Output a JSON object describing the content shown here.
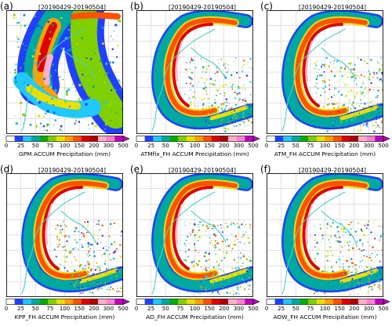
{
  "date_range": "[20190429-20190504]",
  "colorbar": {
    "ticks": [
      "0",
      "25",
      "50",
      "75",
      "100",
      "150",
      "200",
      "300",
      "500"
    ],
    "colors": [
      "#ffffff",
      "#2040ff",
      "#20c8ff",
      "#00a8a0",
      "#00b000",
      "#80d000",
      "#e8e000",
      "#ffa000",
      "#ff5000",
      "#e00000",
      "#b00000",
      "#ffb0c8",
      "#ff80d0",
      "#c000c0"
    ]
  },
  "colors": {
    "background": "#ffffff",
    "map_frame": "#000000",
    "river": "#48d0c8",
    "grid": "#b8b8b8"
  },
  "panels": [
    {
      "label": "(a)",
      "caption": "GPM ACCUM  Precipitation (mm)"
    },
    {
      "label": "(b)",
      "caption": "ATMfix_FH ACCUM  Precipitation (mm)"
    },
    {
      "label": "(c)",
      "caption": "ATM_FH ACCUM  Precipitation (mm)"
    },
    {
      "label": "(d)",
      "caption": "KPP_FH ACCUM   Precipitation (mm)"
    },
    {
      "label": "(e)",
      "caption": "AO_FH ACCUM   Precipitation (mm)"
    },
    {
      "label": "(f)",
      "caption": "AOW_FH ACCUM  Precipitation (mm)"
    }
  ]
}
